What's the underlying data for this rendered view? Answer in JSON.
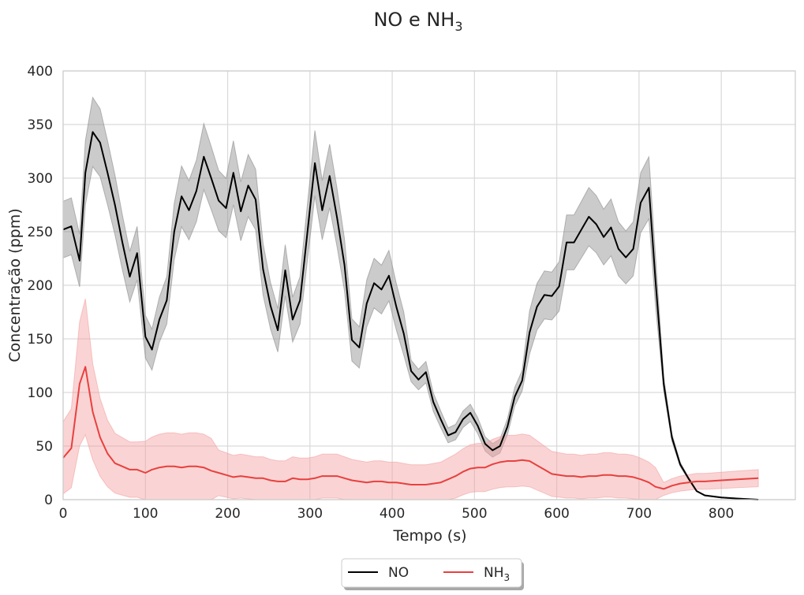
{
  "chart_data": {
    "type": "line",
    "title": "NO e NH",
    "title_subscript": "3",
    "xlabel": "Tempo (s)",
    "ylabel": "Concentração (ppm)",
    "xlim": [
      0,
      890
    ],
    "ylim": [
      0,
      400
    ],
    "xticks": [
      0,
      100,
      200,
      300,
      400,
      500,
      600,
      700,
      800
    ],
    "yticks": [
      0,
      50,
      100,
      150,
      200,
      250,
      300,
      350,
      400
    ],
    "grid": true,
    "legend_position": "bottom-center",
    "series": [
      {
        "name": "NO",
        "name_subscript": "",
        "color": "#000000",
        "band_color": "#8c8c8c",
        "x": [
          0,
          10,
          20,
          27,
          36,
          45,
          54,
          63,
          72,
          81,
          90,
          100,
          108,
          117,
          126,
          135,
          144,
          153,
          162,
          171,
          180,
          189,
          198,
          207,
          216,
          225,
          234,
          243,
          252,
          261,
          270,
          279,
          288,
          297,
          306,
          315,
          324,
          333,
          342,
          351,
          360,
          369,
          378,
          387,
          396,
          405,
          414,
          423,
          432,
          441,
          450,
          459,
          468,
          477,
          486,
          495,
          504,
          513,
          522,
          531,
          540,
          549,
          558,
          567,
          576,
          585,
          594,
          603,
          612,
          621,
          630,
          639,
          648,
          657,
          666,
          675,
          684,
          693,
          702,
          712,
          720,
          730,
          740,
          750,
          760,
          770,
          780,
          800,
          820,
          845
        ],
        "y": [
          252,
          255,
          223,
          305,
          343,
          333,
          305,
          275,
          240,
          208,
          230,
          152,
          140,
          168,
          186,
          250,
          283,
          270,
          288,
          320,
          300,
          279,
          272,
          305,
          269,
          293,
          280,
          215,
          181,
          158,
          214,
          168,
          186,
          250,
          314,
          270,
          302,
          263,
          219,
          149,
          142,
          183,
          202,
          196,
          209,
          180,
          155,
          120,
          112,
          119,
          91,
          75,
          60,
          63,
          75,
          81,
          69,
          52,
          46,
          50,
          68,
          96,
          111,
          156,
          180,
          191,
          190,
          199,
          240,
          240,
          252,
          264,
          257,
          245,
          254,
          234,
          226,
          234,
          277,
          291,
          205,
          108,
          58,
          33,
          20,
          8,
          4,
          2,
          1,
          0
        ]
      },
      {
        "name": "NH",
        "name_subscript": "3",
        "color": "#e8403f",
        "band_color": "#f4a0a0",
        "x": [
          0,
          10,
          20,
          27,
          36,
          45,
          54,
          63,
          72,
          81,
          90,
          100,
          108,
          117,
          126,
          135,
          144,
          153,
          162,
          171,
          180,
          189,
          198,
          207,
          216,
          225,
          234,
          243,
          252,
          261,
          270,
          279,
          288,
          297,
          306,
          315,
          324,
          333,
          342,
          351,
          360,
          369,
          378,
          387,
          396,
          405,
          414,
          423,
          432,
          441,
          450,
          459,
          468,
          477,
          486,
          495,
          504,
          513,
          522,
          531,
          540,
          549,
          558,
          567,
          576,
          585,
          594,
          603,
          612,
          621,
          630,
          639,
          648,
          657,
          666,
          675,
          684,
          693,
          702,
          712,
          720,
          730,
          740,
          750,
          760,
          770,
          780,
          800,
          820,
          845
        ],
        "y": [
          39,
          48,
          108,
          124,
          82,
          58,
          43,
          34,
          31,
          28,
          28,
          25,
          28,
          30,
          31,
          31,
          30,
          31,
          31,
          30,
          27,
          25,
          23,
          21,
          22,
          21,
          20,
          20,
          18,
          17,
          17,
          20,
          19,
          19,
          20,
          22,
          22,
          22,
          20,
          18,
          17,
          16,
          17,
          17,
          16,
          16,
          15,
          14,
          14,
          14,
          15,
          16,
          19,
          22,
          26,
          29,
          30,
          30,
          33,
          35,
          36,
          36,
          37,
          36,
          32,
          28,
          24,
          23,
          22,
          22,
          21,
          22,
          22,
          23,
          23,
          22,
          22,
          21,
          19,
          16,
          12,
          10,
          13,
          15,
          16,
          17,
          17,
          18,
          19,
          20
        ]
      }
    ]
  }
}
